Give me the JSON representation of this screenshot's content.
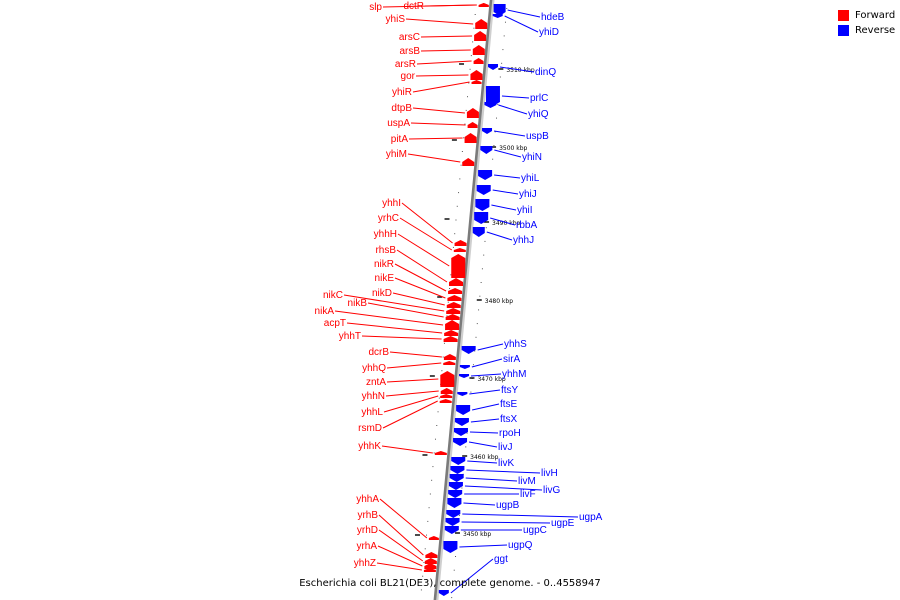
{
  "legend": {
    "forward_label": "Forward",
    "reverse_label": "Reverse",
    "forward_color": "#ff0000",
    "reverse_color": "#0000ff"
  },
  "caption": "Escherichia coli BL21(DE3), complete genome. - 0..4558947",
  "scale_ticks": [
    {
      "label": "3510 kbp"
    },
    {
      "label": "3500 kbp"
    },
    {
      "label": "3490 kbp"
    },
    {
      "label": "3480 kbp"
    },
    {
      "label": "3470 kbp"
    },
    {
      "label": "3460 kbp"
    },
    {
      "label": "3450 kbp"
    }
  ],
  "forward_genes": [
    "slp",
    "dctR",
    "yhiS",
    "arsC",
    "arsB",
    "arsR",
    "gor",
    "yhiR",
    "dtpB",
    "uspA",
    "pitA",
    "yhiM",
    "yhhI",
    "yrhC",
    "yhhH",
    "rhsB",
    "nikR",
    "nikE",
    "nikD",
    "nikC",
    "nikB",
    "nikA",
    "acpT",
    "yhhT",
    "dcrB",
    "yhhQ",
    "zntA",
    "yhhN",
    "yhhL",
    "rsmD",
    "yhhK",
    "yhhA",
    "yrhB",
    "yrhD",
    "yrhA",
    "yhhZ"
  ],
  "reverse_genes": [
    "hdeB",
    "yhiD",
    "dinQ",
    "prlC",
    "yhiQ",
    "uspB",
    "yhiN",
    "yhiL",
    "yhiJ",
    "yhiI",
    "rbbA",
    "yhhJ",
    "yhhS",
    "sirA",
    "yhhM",
    "ftsY",
    "ftsE",
    "ftsX",
    "rpoH",
    "livJ",
    "livK",
    "livH",
    "livM",
    "livG",
    "livF",
    "ugpB",
    "ugpA",
    "ugpE",
    "ugpC",
    "ugpQ",
    "ggt"
  ]
}
